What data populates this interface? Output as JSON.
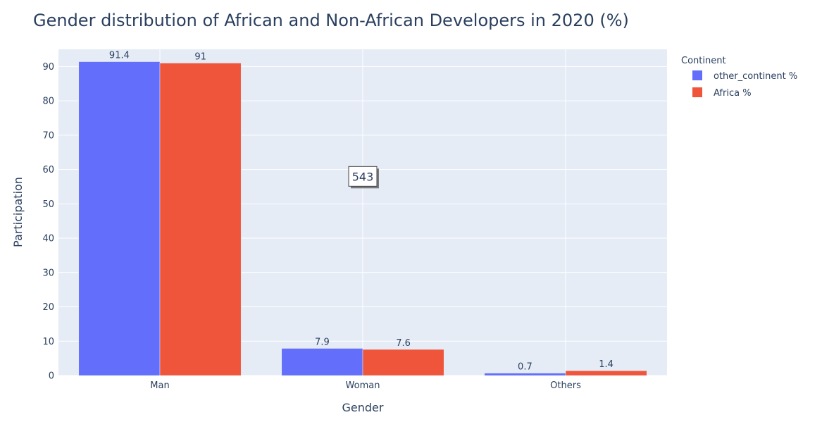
{
  "chart_data": {
    "type": "bar",
    "title": "Gender distribution of African and Non-African Developers in 2020 (%)",
    "xlabel": "Gender",
    "ylabel": "Participation",
    "categories": [
      "Man",
      "Woman",
      "Others"
    ],
    "series": [
      {
        "name": "other_continent %",
        "values": [
          91.4,
          7.9,
          0.7
        ],
        "labels": [
          "91.4",
          "7.9",
          "0.7"
        ],
        "color": "#636efa"
      },
      {
        "name": "Africa %",
        "values": [
          91,
          7.6,
          1.4
        ],
        "labels": [
          "91",
          "7.6",
          "1.4"
        ],
        "color": "#ef553b"
      }
    ],
    "ylim": [
      0,
      95
    ],
    "yticks": [
      0,
      10,
      20,
      30,
      40,
      50,
      60,
      70,
      80,
      90
    ],
    "grid": true,
    "plot_background": "#e5ecf6",
    "legend": {
      "title": "Continent",
      "position": "right"
    },
    "annotation": {
      "text": "543",
      "x": "Woman",
      "y": 58
    }
  }
}
